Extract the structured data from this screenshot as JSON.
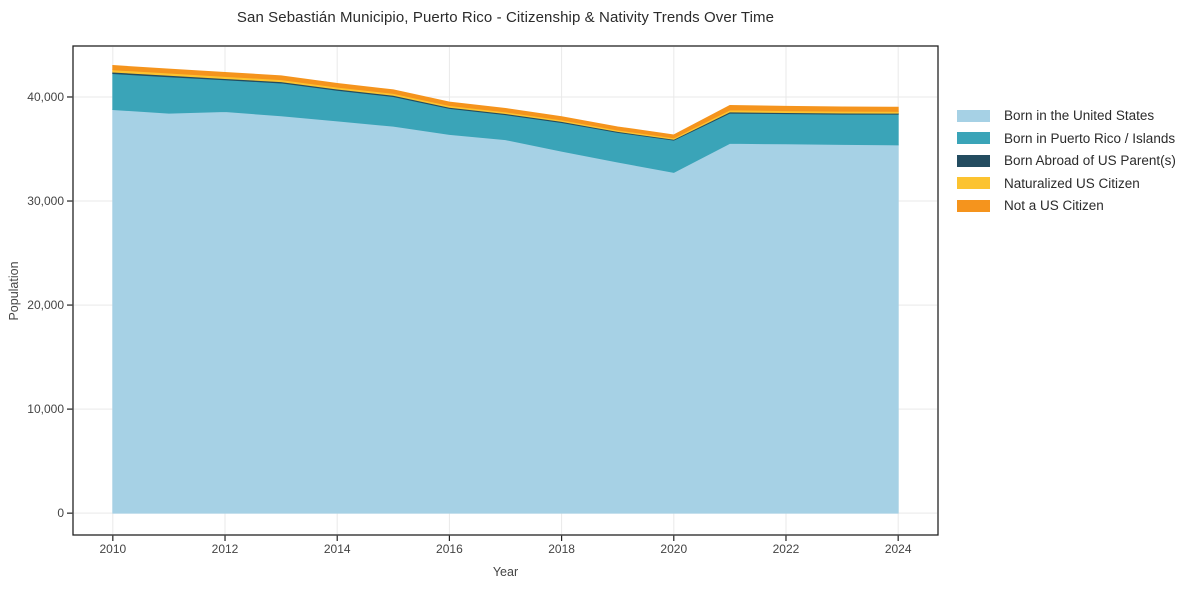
{
  "figure": {
    "background_color": "#ffffff",
    "frame_color": "#222222",
    "gridline_color": "#e9e9e9",
    "tick_label_color": "#444444",
    "title_color": "#2b2b2b"
  },
  "chart_data": {
    "type": "area",
    "stacked": true,
    "title": "San Sebastián Municipio, Puerto Rico - Citizenship & Nativity Trends Over Time",
    "xlabel": "Year",
    "ylabel": "Population",
    "grid": true,
    "legend_position": "right",
    "x": [
      2010,
      2011,
      2012,
      2013,
      2014,
      2015,
      2016,
      2017,
      2018,
      2019,
      2020,
      2021,
      2022,
      2023,
      2024
    ],
    "series": [
      {
        "name": "Born in the United States",
        "color": "#a6d1e5",
        "values": [
          38800,
          38450,
          38600,
          38200,
          37700,
          37200,
          36400,
          35900,
          34800,
          33750,
          32750,
          35550,
          35500,
          35450,
          35400
        ]
      },
      {
        "name": "Born in Puerto Rico / Islands",
        "color": "#3aa4b8",
        "values": [
          3450,
          3500,
          3050,
          3150,
          2950,
          2850,
          2500,
          2400,
          2750,
          2850,
          3100,
          2900,
          2900,
          2900,
          2950
        ]
      },
      {
        "name": "Born Abroad of US Parent(s)",
        "color": "#234c60",
        "values": [
          150,
          140,
          130,
          130,
          120,
          120,
          110,
          110,
          100,
          90,
          90,
          120,
          110,
          110,
          100
        ]
      },
      {
        "name": "Naturalized US Citizen",
        "color": "#fcc330",
        "values": [
          220,
          210,
          200,
          190,
          180,
          170,
          170,
          160,
          150,
          140,
          130,
          190,
          180,
          180,
          170
        ]
      },
      {
        "name": "Not a US Citizen",
        "color": "#f5941d",
        "values": [
          400,
          380,
          370,
          360,
          350,
          340,
          330,
          320,
          300,
          290,
          280,
          420,
          410,
          400,
          390
        ]
      }
    ],
    "xticks": [
      2010,
      2012,
      2014,
      2016,
      2018,
      2020,
      2022,
      2024
    ],
    "xtick_labels": [
      "2010",
      "2012",
      "2014",
      "2016",
      "2018",
      "2020",
      "2022",
      "2024"
    ],
    "yticks": [
      0,
      10000,
      20000,
      30000,
      40000
    ],
    "ytick_labels": [
      "0",
      "10,000",
      "20,000",
      "30,000",
      "40,000"
    ],
    "xlim": [
      2009.29,
      2024.71
    ],
    "ylim": [
      -2100,
      44900
    ]
  }
}
